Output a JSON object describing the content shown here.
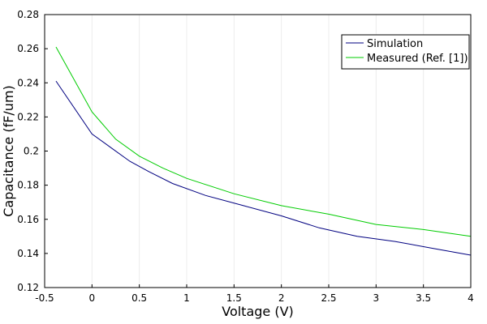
{
  "chart_data": {
    "type": "line",
    "title": "",
    "xlabel": "Voltage (V)",
    "ylabel": "Capacitance (fF/um)",
    "xlim": [
      -0.5,
      4
    ],
    "ylim": [
      0.12,
      0.28
    ],
    "grid": "vertical",
    "legend_position": "top-right",
    "x_ticks": [
      -0.5,
      0,
      0.5,
      1,
      1.5,
      2,
      2.5,
      3,
      3.5,
      4
    ],
    "x_tick_labels": [
      "-0.5",
      "0",
      "0.5",
      "1",
      "1.5",
      "2",
      "2.5",
      "3",
      "3.5",
      "4"
    ],
    "y_ticks": [
      0.12,
      0.14,
      0.16,
      0.18,
      0.2,
      0.22,
      0.24,
      0.26,
      0.28
    ],
    "y_tick_labels": [
      "0.12",
      "0.14",
      "0.16",
      "0.18",
      "0.2",
      "0.22",
      "0.24",
      "0.26",
      "0.28"
    ],
    "series": [
      {
        "name": "Simulation",
        "color": "#000080",
        "x": [
          -0.38,
          0.0,
          0.2,
          0.4,
          0.6,
          0.85,
          1.2,
          1.6,
          2.0,
          2.4,
          2.8,
          3.2,
          3.6,
          4.0
        ],
        "y": [
          0.241,
          0.21,
          0.202,
          0.194,
          0.188,
          0.181,
          0.174,
          0.168,
          0.162,
          0.155,
          0.15,
          0.147,
          0.143,
          0.139
        ]
      },
      {
        "name": "Measured (Ref. [1])",
        "color": "#00cc00",
        "x": [
          -0.38,
          0.0,
          0.25,
          0.5,
          0.75,
          1.0,
          1.5,
          2.0,
          2.5,
          3.0,
          3.5,
          4.0
        ],
        "y": [
          0.261,
          0.223,
          0.207,
          0.197,
          0.19,
          0.184,
          0.175,
          0.168,
          0.163,
          0.157,
          0.154,
          0.15
        ]
      }
    ]
  }
}
